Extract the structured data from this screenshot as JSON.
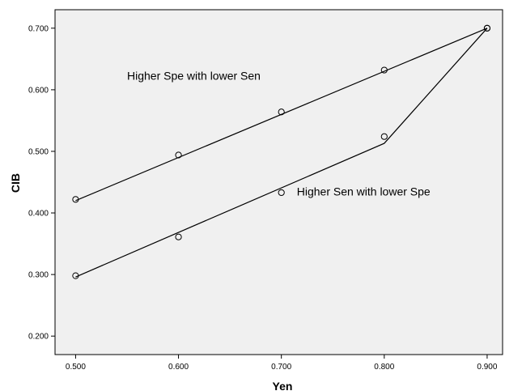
{
  "chart_data": {
    "type": "scatter",
    "xlabel": "Yen",
    "ylabel": "CIB",
    "xlim": [
      0.48,
      0.915
    ],
    "ylim": [
      0.17,
      0.73
    ],
    "xticks": [
      "0.500",
      "0.600",
      "0.700",
      "0.800",
      "0.900"
    ],
    "yticks": [
      "0.200",
      "0.300",
      "0.400",
      "0.500",
      "0.600",
      "0.700"
    ],
    "grid": false,
    "series": [
      {
        "points": [
          [
            0.5,
            0.422
          ],
          [
            0.6,
            0.494
          ],
          [
            0.7,
            0.564
          ],
          [
            0.8,
            0.632
          ],
          [
            0.9,
            0.7
          ]
        ],
        "fit_line": [
          [
            0.5,
            0.42
          ],
          [
            0.9,
            0.7
          ]
        ]
      },
      {
        "points": [
          [
            0.5,
            0.298
          ],
          [
            0.6,
            0.361
          ],
          [
            0.7,
            0.433
          ],
          [
            0.8,
            0.524
          ],
          [
            0.9,
            0.7
          ]
        ],
        "fit_line": [
          [
            0.5,
            0.296
          ],
          [
            0.8,
            0.513
          ],
          [
            0.9,
            0.7
          ]
        ]
      }
    ],
    "annotations": [
      {
        "text": "Higher Spe with lower Sen",
        "x": 0.55,
        "y": 0.616
      },
      {
        "text": "Higher Sen with lower Spe",
        "x": 0.715,
        "y": 0.428
      }
    ]
  }
}
